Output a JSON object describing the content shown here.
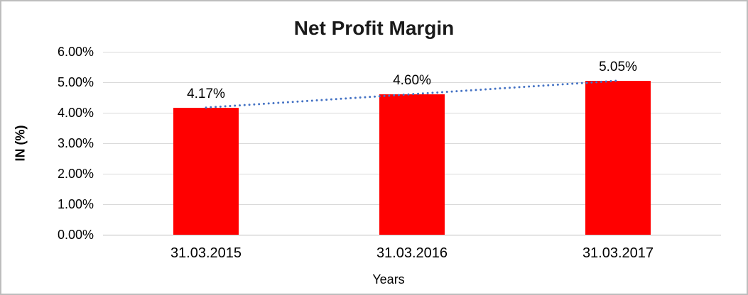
{
  "chart_data": {
    "type": "bar",
    "title": "Net Profit Margin",
    "categories": [
      "31.03.2015",
      "31.03.2016",
      "31.03.2017"
    ],
    "values": [
      4.17,
      4.6,
      5.05
    ],
    "data_labels": [
      "4.17%",
      "4.60%",
      "5.05%"
    ],
    "xlabel": "Years",
    "ylabel": "IN (%)",
    "ylim": [
      0,
      6
    ],
    "ytick_labels": [
      "0.00%",
      "1.00%",
      "2.00%",
      "3.00%",
      "4.00%",
      "5.00%",
      "6.00%"
    ],
    "grid": true,
    "legend": false,
    "bar_color": "#ff0000",
    "gridline_color": "#d9d9d9",
    "title_color": "#1a1a1a",
    "text_color": "#000000",
    "trendline": {
      "style": "dotted",
      "color": "#4472c4",
      "from_value": 4.17,
      "to_value": 5.05
    }
  }
}
